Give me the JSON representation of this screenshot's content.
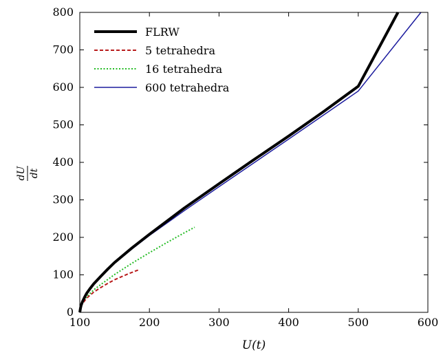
{
  "chart_data": {
    "type": "line",
    "xlabel": "U(t)",
    "ylabel_num": "dU",
    "ylabel_den": "dt",
    "xlim": [
      100,
      600
    ],
    "ylim": [
      0,
      800
    ],
    "xticks": [
      "100",
      "200",
      "300",
      "400",
      "500",
      "600"
    ],
    "yticks": [
      "0",
      "100",
      "200",
      "300",
      "400",
      "500",
      "600",
      "700",
      "800"
    ],
    "grid": false,
    "legend_position": "top-left",
    "series": [
      {
        "name": "FLRW",
        "color": "#000000",
        "style": "solid-thick",
        "x": [
          100,
          101,
          102,
          104,
          107,
          110,
          115,
          120,
          130,
          140,
          150,
          175,
          200,
          250,
          300,
          350,
          400,
          450,
          500,
          557
        ],
        "y": [
          0,
          11,
          19,
          29,
          41,
          51,
          64,
          76,
          96,
          115,
          133,
          172,
          208,
          278,
          343,
          407,
          470,
          535,
          603,
          800
        ]
      },
      {
        "name": "5 tetrahedra",
        "color": "#b81b1b",
        "style": "dashed",
        "x": [
          100,
          101,
          102,
          104,
          107,
          110,
          115,
          120,
          130,
          140,
          150,
          160,
          170,
          184
        ],
        "y": [
          0,
          10,
          16,
          23,
          31,
          38,
          46,
          54,
          66,
          77,
          87,
          95,
          103,
          113
        ]
      },
      {
        "name": "16 tetrahedra",
        "color": "#22bb22",
        "style": "dotted",
        "x": [
          100,
          101,
          102,
          104,
          107,
          110,
          115,
          120,
          130,
          150,
          175,
          200,
          225,
          250,
          265
        ],
        "y": [
          0,
          10,
          17,
          25,
          34,
          42,
          51,
          60,
          74,
          101,
          131,
          159,
          186,
          212,
          227
        ]
      },
      {
        "name": "600 tetrahedra",
        "color": "#1c1c9e",
        "style": "solid-thin",
        "x": [
          100,
          101,
          102,
          104,
          107,
          110,
          115,
          120,
          130,
          140,
          150,
          175,
          200,
          250,
          300,
          400,
          500,
          590
        ],
        "y": [
          0,
          11,
          19,
          29,
          41,
          51,
          64,
          76,
          96,
          114,
          131,
          169,
          205,
          271,
          335,
          462,
          590,
          800
        ]
      }
    ]
  }
}
